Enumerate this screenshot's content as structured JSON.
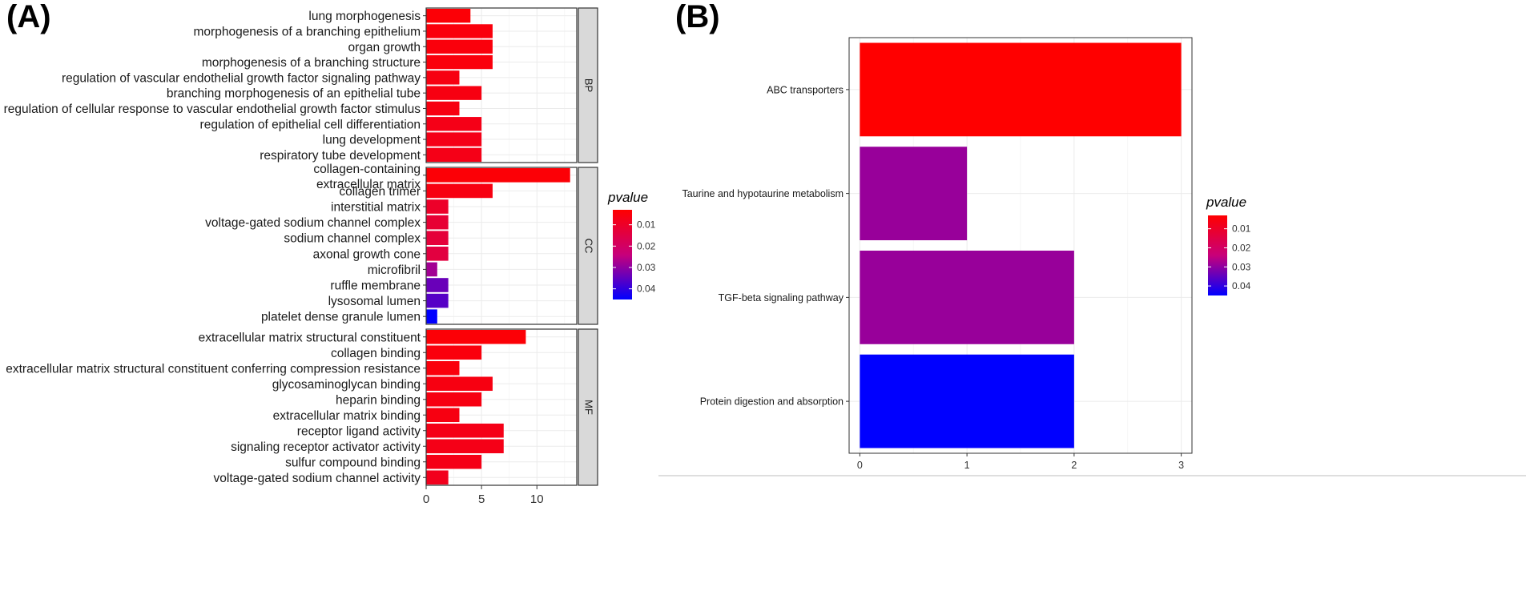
{
  "colors": {
    "low_p": "#ff0000",
    "high_p": "#0000ff",
    "grid": "#ebebeb",
    "strip": "#d9d9d9"
  },
  "chart_data": [
    {
      "panel": "(A)",
      "type": "bar",
      "orientation": "horizontal",
      "xlabel": "",
      "ylabel": "",
      "xlim": [
        0,
        13.6
      ],
      "xticks": [
        0,
        5,
        10
      ],
      "legend": {
        "title": "pvalue",
        "ticks": [
          0.01,
          0.02,
          0.03,
          0.04
        ],
        "range": [
          0.003,
          0.045
        ],
        "placement": "right"
      },
      "facets": [
        {
          "name": "BP",
          "categories": [
            "lung morphogenesis",
            "morphogenesis of a branching epithelium",
            "organ growth",
            "morphogenesis of a branching structure",
            "regulation of vascular endothelial growth factor signaling pathway",
            "branching morphogenesis of an epithelial tube",
            "regulation of cellular response to vascular endothelial growth factor stimulus",
            "regulation of epithelial cell differentiation",
            "lung development",
            "respiratory tube development"
          ],
          "values": [
            4,
            6,
            6,
            6,
            3,
            5,
            3,
            5,
            5,
            5
          ],
          "pvalues": [
            0.004,
            0.005,
            0.005,
            0.005,
            0.006,
            0.006,
            0.006,
            0.007,
            0.007,
            0.007
          ]
        },
        {
          "name": "CC",
          "categories": [
            [
              "collagen-containing",
              "extracellular matrix"
            ],
            "collagen trimer",
            "interstitial matrix",
            "voltage-gated sodium channel complex",
            "sodium channel complex",
            "axonal growth cone",
            "microfibril",
            "ruffle membrane",
            "lysosomal lumen",
            "platelet dense granule lumen"
          ],
          "values": [
            13,
            6,
            2,
            2,
            2,
            2,
            1,
            2,
            2,
            1
          ],
          "pvalues": [
            0.004,
            0.006,
            0.01,
            0.012,
            0.013,
            0.014,
            0.028,
            0.034,
            0.036,
            0.045
          ]
        },
        {
          "name": "MF",
          "categories": [
            "extracellular matrix structural constituent",
            "collagen binding",
            "extracellular matrix structural constituent conferring compression resistance",
            "glycosaminoglycan binding",
            "heparin binding",
            "extracellular matrix binding",
            "receptor ligand activity",
            "signaling receptor activator activity",
            "sulfur compound binding",
            "voltage-gated sodium channel activity"
          ],
          "values": [
            9,
            5,
            3,
            6,
            5,
            3,
            7,
            7,
            5,
            2
          ],
          "pvalues": [
            0.004,
            0.005,
            0.005,
            0.006,
            0.006,
            0.006,
            0.007,
            0.007,
            0.007,
            0.008
          ]
        }
      ]
    },
    {
      "panel": "(B)",
      "type": "bar",
      "orientation": "horizontal",
      "xlabel": "",
      "ylabel": "",
      "xlim": [
        -0.1,
        3.1
      ],
      "xticks": [
        0,
        1,
        2,
        3
      ],
      "categories": [
        "ABC transporters",
        "Taurine and hypotaurine metabolism",
        "TGF-beta signaling pathway",
        "Protein digestion and absorption"
      ],
      "values": [
        3,
        1,
        2,
        2
      ],
      "pvalues": [
        0.003,
        0.029,
        0.029,
        0.045
      ],
      "legend": {
        "title": "pvalue",
        "ticks": [
          0.01,
          0.02,
          0.03,
          0.04
        ],
        "range": [
          0.003,
          0.045
        ],
        "placement": "right"
      }
    }
  ]
}
